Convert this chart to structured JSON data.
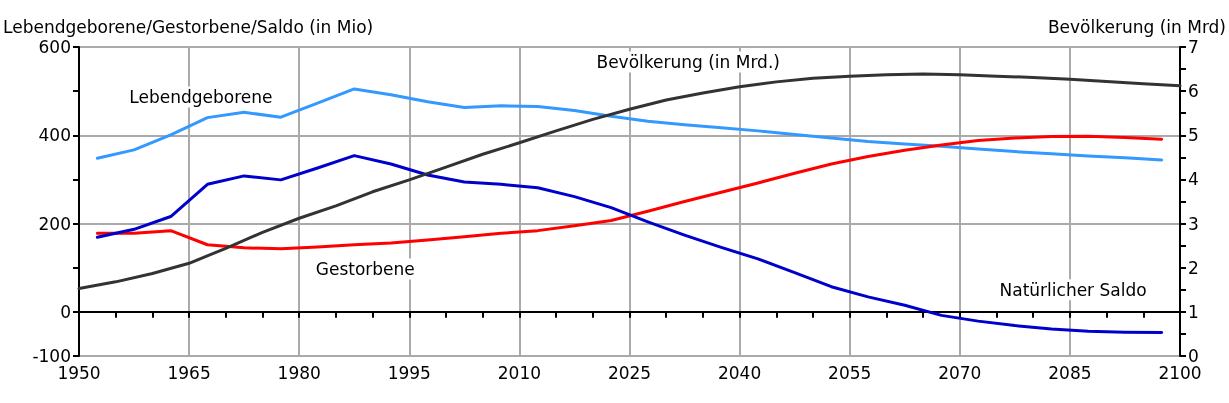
{
  "chart_data": {
    "type": "line",
    "ylabel": "Lebendgeborene/Gestorbene/Saldo (in Mio)",
    "y2label": "Bevölkerung (in Mrd)",
    "x": [
      1952.5,
      1957.5,
      1962.5,
      1967.5,
      1972.5,
      1977.5,
      1982.5,
      1987.5,
      1992.5,
      1997.5,
      2002.5,
      2007.5,
      2012.5,
      2017.5,
      2022.5,
      2027.5,
      2032.5,
      2037.5,
      2042.5,
      2047.5,
      2052.5,
      2057.5,
      2062.5,
      2067.5,
      2072.5,
      2077.5,
      2082.5,
      2087.5,
      2092.5,
      2097.5
    ],
    "series": [
      {
        "name": "Lebendgeborene",
        "color": "#3399ff",
        "values": [
          348,
          367,
          401,
          440,
          452,
          441,
          473,
          505,
          492,
          476,
          463,
          467,
          465,
          456,
          443,
          432,
          424,
          417,
          410,
          402,
          394,
          386,
          380,
          375,
          369,
          363,
          358,
          353,
          349,
          344
        ]
      },
      {
        "name": "Gestorbene",
        "color": "#ff0000",
        "values": [
          178,
          178,
          184,
          152,
          145,
          143,
          147,
          152,
          156,
          163,
          170,
          178,
          184,
          195,
          207,
          228,
          250,
          271,
          292,
          314,
          335,
          352,
          366,
          378,
          388,
          394,
          397,
          398,
          395,
          391
        ]
      },
      {
        "name": "Natürlicher Saldo",
        "color": "#0000cc",
        "values": [
          169,
          187,
          216,
          289,
          308,
          299,
          326,
          354,
          335,
          310,
          294,
          289,
          281,
          261,
          236,
          204,
          174,
          146,
          120,
          89,
          57,
          34,
          15,
          -8,
          -21,
          -31,
          -39,
          -44,
          -46,
          -47
        ]
      },
      {
        "name": "Bevölkerung (in Mrd.)",
        "color": "#333333",
        "axis": "y2",
        "x": [
          1950,
          1955,
          1960,
          1965,
          1970,
          1975,
          1980,
          1985,
          1990,
          1995,
          2000,
          2005,
          2010,
          2015,
          2020,
          2025,
          2030,
          2035,
          2040,
          2045,
          2050,
          2055,
          2060,
          2065,
          2070,
          2075,
          2080,
          2085,
          2090,
          2095,
          2100
        ],
        "values": [
          1.53,
          1.68,
          1.87,
          2.1,
          2.44,
          2.8,
          3.12,
          3.4,
          3.72,
          3.99,
          4.28,
          4.57,
          4.83,
          5.1,
          5.36,
          5.59,
          5.8,
          5.96,
          6.1,
          6.21,
          6.29,
          6.34,
          6.37,
          6.39,
          6.37,
          6.34,
          6.31,
          6.27,
          6.22,
          6.17,
          6.12
        ]
      }
    ],
    "xlim": [
      1950,
      2100
    ],
    "xticks": [
      1950,
      {
        "value": 1955,
        "label": null
      },
      {
        "value": 1960,
        "label": null
      },
      1965,
      {
        "value": 1970,
        "label": null
      },
      {
        "value": 1975,
        "label": null
      },
      1980,
      {
        "value": 1985,
        "label": null
      },
      {
        "value": 1990,
        "label": null
      },
      1995,
      {
        "value": 2000,
        "label": null
      },
      {
        "value": 2005,
        "label": null
      },
      2010,
      {
        "value": 2015,
        "label": null
      },
      {
        "value": 2020,
        "label": null
      },
      2025,
      {
        "value": 2030,
        "label": null
      },
      {
        "value": 2035,
        "label": null
      },
      2040,
      {
        "value": 2045,
        "label": null
      },
      {
        "value": 2050,
        "label": null
      },
      2055,
      {
        "value": 2060,
        "label": null
      },
      {
        "value": 2065,
        "label": null
      },
      2070,
      {
        "value": 2075,
        "label": null
      },
      {
        "value": 2080,
        "label": null
      },
      2085,
      {
        "value": 2090,
        "label": null
      },
      {
        "value": 2095,
        "label": null
      },
      2100
    ],
    "ylim": [
      -100,
      600
    ],
    "yticks": [
      -100,
      0,
      {
        "value": 100,
        "label": null
      },
      200,
      {
        "value": 300,
        "label": null
      },
      400,
      {
        "value": 500,
        "label": null
      },
      600
    ],
    "y2lim": [
      0,
      7
    ],
    "y2ticks": [
      0,
      {
        "value": 0.5,
        "label": null
      },
      1,
      {
        "value": 1.5,
        "label": null
      },
      2,
      {
        "value": 2.5,
        "label": null
      },
      3,
      {
        "value": 3.5,
        "label": null
      },
      4,
      {
        "value": 4.5,
        "label": null
      },
      5,
      {
        "value": 5.5,
        "label": null
      },
      6,
      {
        "value": 6.5,
        "label": null
      },
      7
    ],
    "grid": true,
    "marker": "none",
    "line_style": "solid"
  }
}
